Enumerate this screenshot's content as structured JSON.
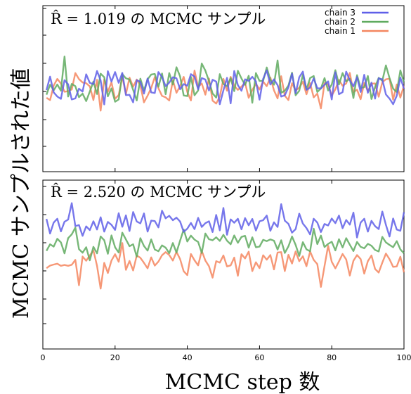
{
  "ylabel": "MCMC サンプルされた値",
  "xlabel": "MCMC step 数",
  "colors": {
    "chain 1": "#f4865f",
    "chain 2": "#5faa5f",
    "chain 3": "#5f5fe8"
  },
  "chart_data": [
    {
      "type": "line",
      "title": "R̂ = 1.019 の MCMC サンプル",
      "xlim": [
        0,
        100
      ],
      "ylim": [
        -4,
        4
      ],
      "legend": "top-right",
      "legend_entries": [
        "chain 3",
        "chain 2",
        "chain 1"
      ],
      "series": [
        {
          "name": "chain 3",
          "values": [
            -0.07,
            0.58,
            -0.18,
            -0.38,
            -0.49,
            0.41,
            0.21,
            -0.52,
            -0.47,
            0.0,
            -0.14,
            0.69,
            0.28,
            0.22,
            0.85,
            0.4,
            -0.76,
            0.84,
            0.34,
            0.8,
            0.28,
            0.76,
            -0.31,
            -0.3,
            -0.66,
            0.41,
            0.33,
            -0.24,
            0.49,
            -0.18,
            -0.21,
            0.8,
            0.56,
            0.12,
            0.29,
            0.55,
            0.5,
            -0.03,
            0.22,
            0.14,
            0.7,
            0.58,
            -0.03,
            0.51,
            0.44,
            -0.09,
            0.43,
            0.34,
            -0.75,
            -0.08,
            0.52,
            -0.71,
            0.85,
            0.17,
            -0.1,
            0.45,
            0.37,
            0.57,
            0.35,
            -0.53,
            0.47,
            0.88,
            0.2,
            0.45,
            0.17,
            -0.38,
            -0.32,
            0.06,
            0.72,
            -0.22,
            0.55,
            0.82,
            -0.06,
            0.05,
            0.5,
            0.02,
            0.01,
            0.19,
            0.35,
            -0.52,
            0.79,
            -0.27,
            -0.17,
            0.82,
            0.41,
            0.11,
            0.56,
            -0.16,
            0.67,
            -0.2,
            0.29,
            -0.48,
            0.5,
            0.45,
            -0.28,
            -0.48,
            -0.75,
            -0.34,
            0.53,
            0.0
          ]
        },
        {
          "name": "chain 2",
          "values": [
            -0.29,
            0.19,
            -0.08,
            0.2,
            -0.1,
            1.55,
            -0.38,
            0.23,
            0.12,
            -0.41,
            -0.24,
            -0.6,
            -0.14,
            0.34,
            -0.26,
            0.72,
            0.55,
            -0.37,
            0.01,
            -0.63,
            -0.52,
            0.7,
            0.5,
            0.44,
            -0.06,
            -0.57,
            0.48,
            -0.09,
            0.45,
            0.68,
            0.71,
            0.09,
            0.73,
            -0.27,
            0.75,
            0.2,
            1.03,
            0.59,
            -0.33,
            -0.36,
            0.57,
            -0.32,
            -0.09,
            1.21,
            0.87,
            0.37,
            -0.23,
            -0.43,
            0.7,
            0.22,
            0.12,
            0.5,
            -0.12,
            0.86,
            0.49,
            0.18,
            0.62,
            -0.68,
            0.75,
            0.37,
            0.38,
            1.02,
            0.42,
            0.19,
            1.36,
            -0.2,
            -0.1,
            0.15,
            0.77,
            -0.32,
            -0.1,
            0.67,
            -0.04,
            0.51,
            0.61,
            -0.16,
            0.01,
            0.51,
            -0.09,
            0.2,
            0.89,
            0.2,
            0.75,
            0.35,
            0.48,
            -0.45,
            0.65,
            0.04,
            0.07,
            0.61,
            -0.5,
            0.08,
            0.52,
            0.38,
            1.12,
            0.51,
            0.0,
            -0.16,
            0.88,
            0.31
          ]
        },
        {
          "name": "chain 1",
          "values": [
            -0.44,
            -0.55,
            0.15,
            0.47,
            0.25,
            -0.15,
            -0.12,
            -0.04,
            0.75,
            0.46,
            0.3,
            0.26,
            0.11,
            -0.55,
            0.43,
            -1.06,
            0.45,
            -0.15,
            0.31,
            -0.49,
            -0.31,
            0.58,
            -0.26,
            0.53,
            0.09,
            0.44,
            0.16,
            -0.66,
            -0.34,
            0.03,
            0.56,
            0.02,
            -0.35,
            -0.42,
            -0.57,
            0.41,
            -0.2,
            0.12,
            0.57,
            -0.16,
            -0.57,
            0.87,
            0.08,
            0.25,
            -0.29,
            0.49,
            -0.58,
            -0.72,
            -0.38,
            0.47,
            -0.1,
            0.57,
            0.14,
            -0.06,
            0.1,
            0.28,
            -0.44,
            -0.06,
            0.23,
            -0.04,
            0.34,
            0.12,
            0.54,
            -0.08,
            -0.47,
            0.6,
            -0.34,
            -0.55,
            0.26,
            -0.09,
            0.05,
            0.33,
            -0.27,
            0.27,
            -0.42,
            -0.24,
            -0.95,
            0.27,
            0.19,
            -0.33,
            -0.03,
            0.42,
            0.14,
            0.25,
            0.76,
            -0.17,
            -0.05,
            -0.51,
            0.28,
            -0.12,
            0.24,
            0.25,
            -0.39,
            0.31,
            0.45,
            0.48,
            -0.53,
            0.2,
            -0.43,
            0.15
          ]
        }
      ]
    },
    {
      "type": "line",
      "title": "R̂ = 2.520 の MCMC サンプル",
      "xlim": [
        0,
        100
      ],
      "ylim": [
        -4,
        4
      ],
      "x_ticks": [
        0,
        20,
        40,
        60,
        80,
        100
      ],
      "series": [
        {
          "name": "chain 3",
          "values": [
            2.16,
            1.47,
            1.99,
            2.17,
            1.57,
            2.03,
            2.13,
            2.91,
            1.82,
            1.87,
            1.36,
            1.81,
            1.63,
            2.05,
            1.66,
            2.24,
            1.56,
            2.02,
            1.88,
            1.64,
            2.43,
            1.79,
            2.33,
            1.59,
            2.49,
            2.04,
            1.95,
            2.42,
            1.56,
            2.08,
            2.06,
            1.76,
            2.55,
            2.19,
            2.31,
            2.1,
            2.22,
            2.04,
            1.55,
            1.7,
            1.97,
            1.68,
            2.21,
            1.78,
            1.96,
            2.05,
            1.54,
            2.35,
            1.62,
            2.68,
            1.41,
            2.14,
            1.98,
            2.17,
            1.67,
            2.2,
            1.86,
            2.16,
            1.61,
            2.05,
            2.1,
            2.32,
            1.6,
            2.0,
            1.78,
            2.86,
            2.08,
            1.93,
            1.51,
            1.68,
            2.41,
            1.94,
            1.73,
            1.43,
            2.17,
            1.99,
            1.54,
            1.92,
            1.85,
            2.18,
            1.96,
            2.32,
            1.72,
            2.11,
            1.89,
            2.46,
            1.28,
            1.99,
            2.17,
            1.56,
            2.07,
            1.82,
            1.68,
            2.51,
            1.88,
            1.33,
            2.18,
            1.66,
            1.6,
            2.48
          ]
        },
        {
          "name": "chain 2",
          "values": [
            0.65,
            0.96,
            0.85,
            1.22,
            1.05,
            0.53,
            1.25,
            1.43,
            1.75,
            0.73,
            0.56,
            0.82,
            0.2,
            0.84,
            0.53,
            1.33,
            1.15,
            0.51,
            1.38,
            0.82,
            0.57,
            1.51,
            1.19,
            0.87,
            0.96,
            0.37,
            1.25,
            0.88,
            0.66,
            1.19,
            0.71,
            0.63,
            0.91,
            0.8,
            0.54,
            1.02,
            0.57,
            1.13,
            1.66,
            1.09,
            1.37,
            1.18,
            1.07,
            0.55,
            1.47,
            1.2,
            1.15,
            1.29,
            1.12,
            1.41,
            1.13,
            0.96,
            1.38,
            1.03,
            1.31,
            1.36,
            0.8,
            1.29,
            0.82,
            0.85,
            1.17,
            1.11,
            1.19,
            1.13,
            0.71,
            1.15,
            0.55,
            0.86,
            1.33,
            0.93,
            0.41,
            1.06,
            0.72,
            0.63,
            1.7,
            0.97,
            1.37,
            0.83,
            0.98,
            1.08,
            0.67,
            1.2,
            0.81,
            1.25,
            0.94,
            0.64,
            1.07,
            0.84,
            0.77,
            0.98,
            0.89,
            0.69,
            0.62,
            1.31,
            1.05,
            0.93,
            0.82,
            1.11,
            0.72,
            0.53
          ]
        },
        {
          "name": "chain 1",
          "values": [
            -0.17,
            -0.05,
            0.0,
            0.04,
            -0.06,
            -0.02,
            -0.06,
            -0.01,
            0.22,
            -0.98,
            0.38,
            0.18,
            0.43,
            0.67,
            -0.06,
            -1.14,
            0.08,
            -0.4,
            0.19,
            0.49,
            0.13,
            1.02,
            -0.25,
            0.17,
            -0.28,
            0.43,
            0.32,
            0.08,
            -0.18,
            0.34,
            -0.05,
            0.14,
            0.44,
            0.59,
            0.45,
            0.19,
            0.6,
            0.26,
            -0.32,
            -0.5,
            0.5,
            0.2,
            -0.04,
            0.65,
            0.19,
            -0.08,
            -0.62,
            0.16,
            0.09,
            0.43,
            -0.09,
            -0.04,
            0.33,
            -0.53,
            0.49,
            0.29,
            0.61,
            -0.31,
            0.11,
            -0.17,
            0.44,
            0.23,
            0.45,
            -0.23,
            0.57,
            0.59,
            -0.31,
            0.46,
            0.05,
            0.62,
            0.16,
            0.39,
            -0.08,
            0.62,
            0.22,
            0.02,
            -1.06,
            -0.07,
            0.89,
            0.13,
            -0.18,
            0.15,
            0.5,
            0.24,
            -0.52,
            0.18,
            0.45,
            0.26,
            -0.43,
            0.16,
            0.43,
            -0.21,
            -0.38,
            0.09,
            0.52,
            0.25,
            -0.11,
            -0.09,
            0.37,
            -0.37
          ]
        }
      ]
    }
  ]
}
